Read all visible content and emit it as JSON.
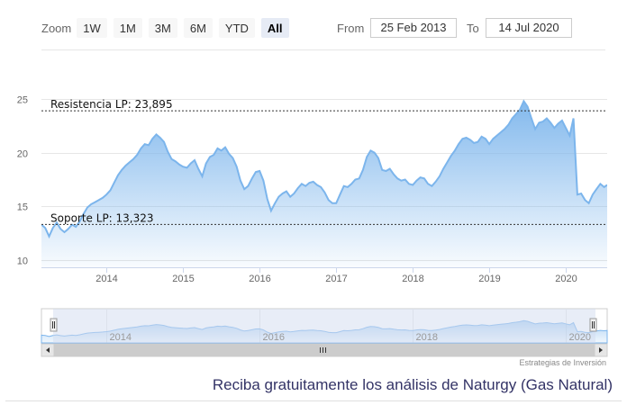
{
  "range_selector": {
    "zoom_label": "Zoom",
    "buttons": [
      "1W",
      "1M",
      "3M",
      "6M",
      "YTD",
      "All"
    ],
    "active_button": "All",
    "from_label": "From",
    "from_value": "25 Feb 2013",
    "to_label": "To",
    "to_value": "14 Jul 2020"
  },
  "credits": "Estrategias de Inversión",
  "footer_text": "Reciba gratuitamente los análisis de Naturgy (Gas Natural)",
  "colors": {
    "line": "#7cb5ec",
    "area_top": "#7cb5ec",
    "navigator_mask": "#d2dcf0",
    "level_line": "#333333"
  },
  "chart_data": {
    "type": "area",
    "title": "",
    "xlabel": "",
    "ylabel": "",
    "ylim": [
      10,
      25
    ],
    "xlim": [
      2013.15,
      2020.54
    ],
    "yticks": [
      10,
      15,
      20,
      25
    ],
    "xticks": [
      2014,
      2015,
      2016,
      2017,
      2018,
      2019,
      2020
    ],
    "grid": "horizontal",
    "x": [
      2013.15,
      2013.2,
      2013.25,
      2013.3,
      2013.35,
      2013.4,
      2013.45,
      2013.5,
      2013.55,
      2013.6,
      2013.65,
      2013.7,
      2013.75,
      2013.8,
      2013.85,
      2013.9,
      2013.95,
      2014.0,
      2014.05,
      2014.1,
      2014.15,
      2014.2,
      2014.25,
      2014.3,
      2014.35,
      2014.4,
      2014.45,
      2014.5,
      2014.55,
      2014.6,
      2014.65,
      2014.7,
      2014.75,
      2014.8,
      2014.85,
      2014.9,
      2014.95,
      2015.0,
      2015.05,
      2015.1,
      2015.15,
      2015.2,
      2015.25,
      2015.3,
      2015.35,
      2015.4,
      2015.45,
      2015.5,
      2015.55,
      2015.6,
      2015.65,
      2015.7,
      2015.75,
      2015.8,
      2015.85,
      2015.9,
      2015.95,
      2016.0,
      2016.05,
      2016.1,
      2016.15,
      2016.2,
      2016.25,
      2016.3,
      2016.35,
      2016.4,
      2016.45,
      2016.5,
      2016.55,
      2016.6,
      2016.65,
      2016.7,
      2016.75,
      2016.8,
      2016.85,
      2016.9,
      2016.95,
      2017.0,
      2017.05,
      2017.1,
      2017.15,
      2017.2,
      2017.25,
      2017.3,
      2017.35,
      2017.4,
      2017.45,
      2017.5,
      2017.55,
      2017.6,
      2017.65,
      2017.7,
      2017.75,
      2017.8,
      2017.85,
      2017.9,
      2017.95,
      2018.0,
      2018.05,
      2018.1,
      2018.15,
      2018.2,
      2018.25,
      2018.3,
      2018.35,
      2018.4,
      2018.45,
      2018.5,
      2018.55,
      2018.6,
      2018.65,
      2018.7,
      2018.75,
      2018.8,
      2018.85,
      2018.9,
      2018.95,
      2019.0,
      2019.05,
      2019.1,
      2019.15,
      2019.2,
      2019.25,
      2019.3,
      2019.35,
      2019.4,
      2019.45,
      2019.5,
      2019.55,
      2019.6,
      2019.65,
      2019.7,
      2019.75,
      2019.8,
      2019.85,
      2019.9,
      2019.95,
      2020.0,
      2020.05,
      2020.1,
      2020.15,
      2020.2,
      2020.25,
      2020.3,
      2020.35,
      2020.4,
      2020.45,
      2020.5,
      2020.54
    ],
    "series": [
      {
        "values": [
          13.3,
          13.0,
          12.2,
          13.0,
          13.5,
          12.9,
          12.6,
          12.9,
          13.3,
          13.1,
          13.6,
          14.3,
          14.9,
          15.2,
          15.4,
          15.6,
          15.8,
          16.1,
          16.5,
          17.2,
          17.9,
          18.4,
          18.8,
          19.1,
          19.4,
          19.8,
          20.4,
          20.8,
          20.7,
          21.3,
          21.7,
          21.4,
          21.0,
          20.1,
          19.4,
          19.2,
          18.9,
          18.7,
          18.6,
          19.0,
          19.3,
          18.5,
          17.8,
          19.0,
          19.6,
          19.8,
          20.4,
          20.2,
          20.5,
          19.9,
          19.5,
          18.7,
          17.4,
          16.6,
          16.9,
          17.6,
          18.2,
          18.3,
          17.4,
          15.7,
          14.6,
          15.3,
          15.9,
          16.2,
          16.4,
          15.9,
          16.2,
          16.7,
          17.1,
          16.9,
          17.2,
          17.3,
          17.0,
          16.8,
          16.3,
          15.6,
          15.3,
          15.3,
          16.1,
          16.9,
          16.8,
          17.1,
          17.5,
          17.6,
          18.4,
          19.6,
          20.2,
          20.0,
          19.5,
          18.4,
          18.3,
          18.5,
          18.0,
          17.6,
          17.4,
          17.5,
          17.1,
          17.0,
          17.4,
          17.7,
          17.6,
          17.1,
          16.9,
          17.3,
          17.8,
          18.5,
          19.1,
          19.7,
          20.2,
          20.8,
          21.3,
          21.4,
          21.2,
          20.9,
          21.0,
          21.5,
          21.3,
          20.8,
          21.3,
          21.6,
          21.9,
          22.2,
          22.6,
          23.2,
          23.6,
          24.0,
          24.8,
          24.3,
          23.2,
          22.2,
          22.8,
          22.9,
          23.2,
          22.8,
          22.3,
          22.7,
          23.0,
          22.3,
          21.6,
          23.2,
          16.1,
          16.2,
          15.6,
          15.3,
          16.1,
          16.6,
          17.1,
          16.8,
          17.0
        ]
      }
    ],
    "annotations": [
      {
        "label": "Resistencia LP: 23,895",
        "value": 23.895
      },
      {
        "label": "Soporte LP: 13,323",
        "value": 13.323
      }
    ],
    "navigator": {
      "xticks": [
        2014,
        2016,
        2018,
        2020
      ],
      "selected_range": [
        2013.15,
        2020.54
      ]
    }
  }
}
